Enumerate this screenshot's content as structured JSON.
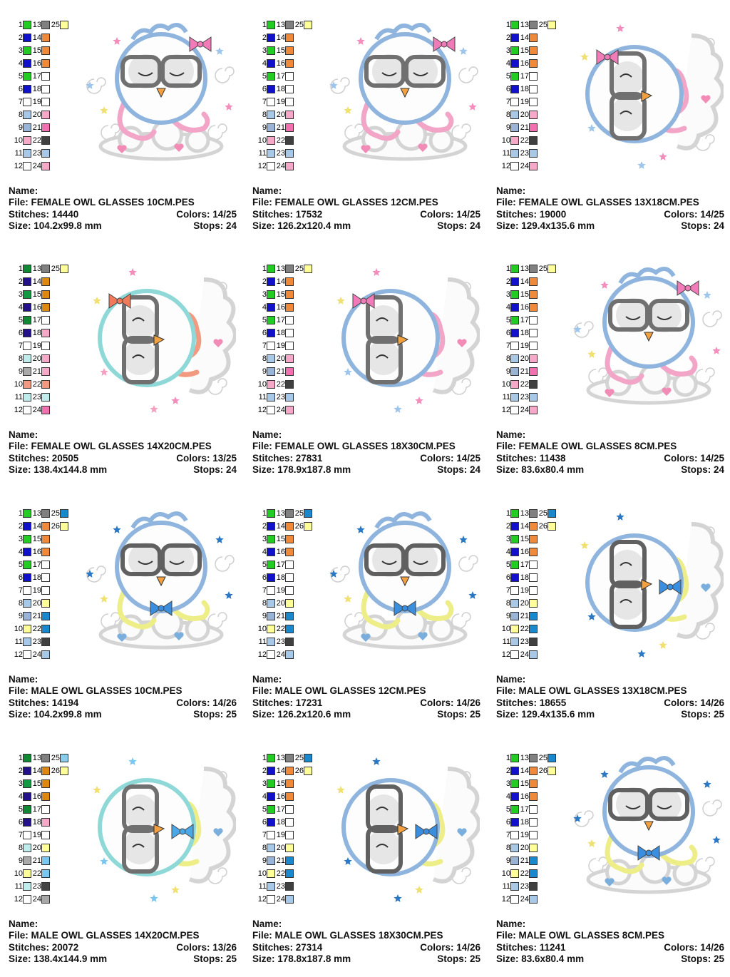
{
  "labels": {
    "name": "Name:",
    "file": "File:",
    "stitches": "Stitches:",
    "colors": "Colors:",
    "size": "Size:",
    "stops": "Stops:"
  },
  "cards": [
    {
      "file": "FEMALE OWL GLASSES 10CM.PES",
      "stitches": "14440",
      "colors": "14/25",
      "size": "104.2x99.8 mm",
      "stops": "24",
      "variant": "female-front",
      "frame": "#8fb5de",
      "glasses": "#707070",
      "accent": "#f2a5c7",
      "bow": "#f07bb8",
      "cloud": "#e6e6e6",
      "star": "#9ec5ec",
      "palette": {
        "col1": [
          "#22cc22",
          "#1111cc",
          "#22cc22",
          "#1111cc",
          "#22cc22",
          "#1111cc",
          "#ffffff",
          "#a8c8e8",
          "#9ab4d8",
          "#f5a8c8",
          "#a8c8e8",
          "#ffffff"
        ],
        "col2": [
          "#808080",
          "#ef8a3a",
          "#ef8a3a",
          "#ef8a3a",
          "#ffffff",
          "#ffffff",
          "#ffffff",
          "#f5a8c8",
          "#f070b0",
          "#404040",
          "#a8c8e8",
          "#f5a8c8"
        ],
        "extra": [
          "#ffff99",
          null
        ]
      }
    },
    {
      "file": "FEMALE OWL GLASSES 12CM.PES",
      "stitches": "17532",
      "colors": "14/25",
      "size": "126.2x120.4 mm",
      "stops": "24",
      "variant": "female-front",
      "frame": "#8fb5de",
      "glasses": "#707070",
      "accent": "#f2a5c7",
      "bow": "#f07bb8",
      "cloud": "#e6e6e6",
      "star": "#9ec5ec",
      "palette": {
        "col1": [
          "#22cc22",
          "#1111cc",
          "#22cc22",
          "#1111cc",
          "#22cc22",
          "#1111cc",
          "#ffffff",
          "#a8c8e8",
          "#9ab4d8",
          "#f5a8c8",
          "#a8c8e8",
          "#ffffff"
        ],
        "col2": [
          "#808080",
          "#ef8a3a",
          "#ef8a3a",
          "#ef8a3a",
          "#ffffff",
          "#ffffff",
          "#ffffff",
          "#f5a8c8",
          "#f070b0",
          "#404040",
          "#a8c8e8",
          "#f5a8c8"
        ],
        "extra": [
          "#ffff99",
          null
        ]
      }
    },
    {
      "file": "FEMALE OWL GLASSES 13X18CM.PES",
      "stitches": "19000",
      "colors": "14/25",
      "size": "129.4x135.6 mm",
      "stops": "24",
      "variant": "female-side",
      "frame": "#8fb5de",
      "glasses": "#707070",
      "accent": "#f2a5c7",
      "bow": "#f07bb8",
      "cloud": "#e6e6e6",
      "star": "#9ec5ec",
      "palette": {
        "col1": [
          "#22cc22",
          "#1111cc",
          "#22cc22",
          "#1111cc",
          "#22cc22",
          "#1111cc",
          "#ffffff",
          "#a8c8e8",
          "#9ab4d8",
          "#f5a8c8",
          "#a8c8e8",
          "#ffffff"
        ],
        "col2": [
          "#808080",
          "#ef8a3a",
          "#ef8a3a",
          "#ef8a3a",
          "#ffffff",
          "#ffffff",
          "#ffffff",
          "#f5a8c8",
          "#f070b0",
          "#404040",
          "#a8c8e8",
          "#f5a8c8"
        ],
        "extra": [
          "#ffff99",
          null
        ]
      }
    },
    {
      "file": "FEMALE OWL GLASSES 14X20CM.PES",
      "stitches": "20505",
      "colors": "13/25",
      "size": "138.4x144.8 mm",
      "stops": "24",
      "variant": "female-side",
      "frame": "#8fd8d8",
      "glasses": "#707070",
      "accent": "#f29a80",
      "bow": "#f07a5a",
      "cloud": "#e6e6e6",
      "star": "#f4a0c0",
      "palette": {
        "col1": [
          "#118833",
          "#221188",
          "#119944",
          "#221188",
          "#118833",
          "#221188",
          "#ffffff",
          "#c0ecec",
          "#aaaaaa",
          "#f29a80",
          "#c0ecec",
          "#ffffff"
        ],
        "col2": [
          "#808080",
          "#dd8811",
          "#dd8811",
          "#dd8811",
          "#ffffff",
          "#f5a8c8",
          "#ffffff",
          "#f5a8c8",
          "#f5a8c8",
          "#f29a80",
          "#c0ecec",
          "#f070b0"
        ],
        "extra": [
          "#ffff99",
          null
        ]
      }
    },
    {
      "file": "FEMALE OWL GLASSES 18X30CM.PES",
      "stitches": "27831",
      "colors": "14/25",
      "size": "178.9x187.8 mm",
      "stops": "24",
      "variant": "female-side",
      "frame": "#8fb5de",
      "glasses": "#707070",
      "accent": "#f2a5c7",
      "bow": "#f07bb8",
      "cloud": "#e6e6e6",
      "star": "#9ec5ec",
      "palette": {
        "col1": [
          "#22cc22",
          "#1111cc",
          "#22cc22",
          "#1111cc",
          "#22cc22",
          "#1111cc",
          "#ffffff",
          "#a8c8e8",
          "#9ab4d8",
          "#f5a8c8",
          "#a8c8e8",
          "#ffffff"
        ],
        "col2": [
          "#808080",
          "#ef8a3a",
          "#ef8a3a",
          "#ef8a3a",
          "#ffffff",
          "#ffffff",
          "#ffffff",
          "#f5a8c8",
          "#f070b0",
          "#404040",
          "#a8c8e8",
          "#f5a8c8"
        ],
        "extra": [
          "#ffff99",
          null
        ]
      }
    },
    {
      "file": "FEMALE OWL GLASSES 8CM.PES",
      "stitches": "11438",
      "colors": "14/25",
      "size": "83.6x80.4 mm",
      "stops": "24",
      "variant": "female-front",
      "frame": "#8fb5de",
      "glasses": "#707070",
      "accent": "#f2a5c7",
      "bow": "#f07bb8",
      "cloud": "#e6e6e6",
      "star": "#9ec5ec",
      "palette": {
        "col1": [
          "#22cc22",
          "#1111cc",
          "#22cc22",
          "#1111cc",
          "#22cc22",
          "#1111cc",
          "#ffffff",
          "#a8c8e8",
          "#9ab4d8",
          "#f5a8c8",
          "#a8c8e8",
          "#ffffff"
        ],
        "col2": [
          "#808080",
          "#ef8a3a",
          "#ef8a3a",
          "#ef8a3a",
          "#ffffff",
          "#ffffff",
          "#ffffff",
          "#f5a8c8",
          "#f070b0",
          "#404040",
          "#a8c8e8",
          "#f5a8c8"
        ],
        "extra": [
          "#ffff99",
          null
        ]
      }
    },
    {
      "file": "MALE OWL GLASSES 10CM.PES",
      "stitches": "14194",
      "colors": "14/26",
      "size": "104.2x99.8 mm",
      "stops": "25",
      "variant": "male-front",
      "frame": "#8fb5de",
      "glasses": "#606060",
      "accent": "#eeee88",
      "bow": "#3a8ee0",
      "cloud": "#e6e6e6",
      "star": "#2a77c4",
      "palette": {
        "col1": [
          "#22cc22",
          "#1111cc",
          "#22cc22",
          "#1111cc",
          "#22cc22",
          "#1111cc",
          "#ffffff",
          "#a8c8e8",
          "#9ab4d8",
          "#ffff99",
          "#a8c8e8",
          "#ffffff"
        ],
        "col2": [
          "#808080",
          "#ef8a3a",
          "#ef8a3a",
          "#ef8a3a",
          "#ffffff",
          "#ffffff",
          "#ffffff",
          "#ffff99",
          "#1a88cc",
          "#1a88cc",
          "#404040",
          "#a8c8e8"
        ],
        "extra": [
          "#1a88cc",
          "#ffff99"
        ]
      }
    },
    {
      "file": "MALE OWL GLASSES 12CM.PES",
      "stitches": "17231",
      "colors": "14/26",
      "size": "126.2x120.6 mm",
      "stops": "25",
      "variant": "male-front",
      "frame": "#8fb5de",
      "glasses": "#606060",
      "accent": "#eeee88",
      "bow": "#3a8ee0",
      "cloud": "#e6e6e6",
      "star": "#2a77c4",
      "palette": {
        "col1": [
          "#22cc22",
          "#1111cc",
          "#22cc22",
          "#1111cc",
          "#22cc22",
          "#1111cc",
          "#ffffff",
          "#a8c8e8",
          "#9ab4d8",
          "#ffff99",
          "#a8c8e8",
          "#ffffff"
        ],
        "col2": [
          "#808080",
          "#ef8a3a",
          "#ef8a3a",
          "#ef8a3a",
          "#ffffff",
          "#ffffff",
          "#ffffff",
          "#ffff99",
          "#1a88cc",
          "#1a88cc",
          "#404040",
          "#a8c8e8"
        ],
        "extra": [
          "#1a88cc",
          "#ffff99"
        ]
      }
    },
    {
      "file": "MALE OWL GLASSES 13X18CM.PES",
      "stitches": "18655",
      "colors": "14/26",
      "size": "129.4x135.6 mm",
      "stops": "25",
      "variant": "male-side",
      "frame": "#8fb5de",
      "glasses": "#606060",
      "accent": "#eeee88",
      "bow": "#3a8ee0",
      "cloud": "#e6e6e6",
      "star": "#2a77c4",
      "palette": {
        "col1": [
          "#22cc22",
          "#1111cc",
          "#22cc22",
          "#1111cc",
          "#22cc22",
          "#1111cc",
          "#ffffff",
          "#a8c8e8",
          "#9ab4d8",
          "#ffff99",
          "#a8c8e8",
          "#ffffff"
        ],
        "col2": [
          "#808080",
          "#ef8a3a",
          "#ef8a3a",
          "#ef8a3a",
          "#ffffff",
          "#ffffff",
          "#ffffff",
          "#ffff99",
          "#1a88cc",
          "#1a88cc",
          "#404040",
          "#a8c8e8"
        ],
        "extra": [
          "#1a88cc",
          "#ffff99"
        ]
      }
    },
    {
      "file": "MALE OWL GLASSES 14X20CM.PES",
      "stitches": "20072",
      "colors": "13/26",
      "size": "138.4x144.9 mm",
      "stops": "25",
      "variant": "male-side",
      "frame": "#8fd8d8",
      "glasses": "#707070",
      "accent": "#eeee88",
      "bow": "#4aa8e8",
      "cloud": "#e6e6e6",
      "star": "#7ac8f0",
      "palette": {
        "col1": [
          "#118833",
          "#221188",
          "#119944",
          "#221188",
          "#118833",
          "#221188",
          "#ffffff",
          "#c0ecec",
          "#aaaaaa",
          "#ffff99",
          "#c0ecec",
          "#ffffff"
        ],
        "col2": [
          "#808080",
          "#dd8811",
          "#dd8811",
          "#dd8811",
          "#ffffff",
          "#f5a8c8",
          "#ffffff",
          "#ffff99",
          "#7ac8f0",
          "#7ac8f0",
          "#444444",
          "#a8a8a8"
        ],
        "extra": [
          "#88ccee",
          "#ffff99"
        ]
      }
    },
    {
      "file": "MALE OWL GLASSES 18X30CM.PES",
      "stitches": "27314",
      "colors": "14/26",
      "size": "178.8x187.8 mm",
      "stops": "25",
      "variant": "male-side",
      "frame": "#8fb5de",
      "glasses": "#606060",
      "accent": "#eeee88",
      "bow": "#3a8ee0",
      "cloud": "#e6e6e6",
      "star": "#2a77c4",
      "palette": {
        "col1": [
          "#22cc22",
          "#1111cc",
          "#22cc22",
          "#1111cc",
          "#22cc22",
          "#1111cc",
          "#ffffff",
          "#a8c8e8",
          "#9ab4d8",
          "#ffff99",
          "#a8c8e8",
          "#ffffff"
        ],
        "col2": [
          "#808080",
          "#ef8a3a",
          "#ef8a3a",
          "#ef8a3a",
          "#ffffff",
          "#ffffff",
          "#ffffff",
          "#ffff99",
          "#1a88cc",
          "#1a88cc",
          "#404040",
          "#a8c8e8"
        ],
        "extra": [
          "#1a88cc",
          "#ffff99"
        ]
      }
    },
    {
      "file": "MALE OWL GLASSES 8CM.PES",
      "stitches": "11241",
      "colors": "14/26",
      "size": "83.6x80.4 mm",
      "stops": "25",
      "variant": "male-front",
      "frame": "#8fb5de",
      "glasses": "#606060",
      "accent": "#eeee88",
      "bow": "#3a8ee0",
      "cloud": "#e6e6e6",
      "star": "#2a77c4",
      "palette": {
        "col1": [
          "#22cc22",
          "#1111cc",
          "#22cc22",
          "#1111cc",
          "#22cc22",
          "#1111cc",
          "#ffffff",
          "#a8c8e8",
          "#9ab4d8",
          "#ffff99",
          "#a8c8e8",
          "#ffffff"
        ],
        "col2": [
          "#808080",
          "#ef8a3a",
          "#ef8a3a",
          "#ef8a3a",
          "#ffffff",
          "#ffffff",
          "#ffffff",
          "#ffff99",
          "#1a88cc",
          "#1a88cc",
          "#404040",
          "#a8c8e8"
        ],
        "extra": [
          "#1a88cc",
          "#ffff99"
        ]
      }
    }
  ]
}
